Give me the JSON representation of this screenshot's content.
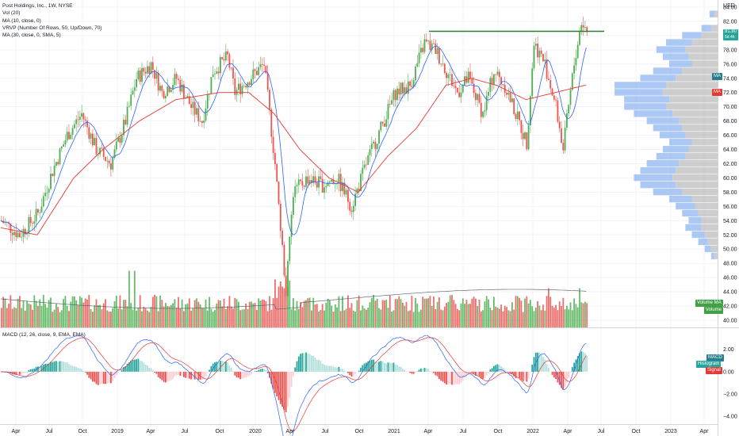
{
  "legend": {
    "title": "Post Holdings, Inc., 1W, NYSE",
    "lines": [
      "Vol (20)",
      "MA (10, close, 0)",
      "VRVP (Number Of Rows, 50, Up/Down, 70)",
      "MA (30, close, 0, SMA, 5)"
    ],
    "macd": "MACD (12, 26, close, 9, EMA, EMA)"
  },
  "currency": "USD",
  "last_price": "81.80",
  "last_price_sub": "5d 4h",
  "tags": {
    "ma10": "MA",
    "ma30": "MA",
    "vol_ma": "Volume MA",
    "volume": "Volume",
    "macd": "MACD",
    "histogram": "Histogram",
    "signal": "Signal"
  },
  "colors": {
    "up": "#26a69a",
    "up_bar": "#4caf50",
    "down": "#ef5350",
    "ma10": "#2962ff",
    "ma30": "#e53935",
    "vrvp_up": "#90b5f0",
    "vrvp_down": "#bdbdbd",
    "resistance": "#2e7d32"
  },
  "chart_data": {
    "type": "candlestick",
    "price_axis": {
      "ticks": [
        "84.00",
        "82.00",
        "80.00",
        "78.00",
        "76.00",
        "74.00",
        "72.00",
        "70.00",
        "68.00",
        "66.00",
        "64.00",
        "62.00",
        "60.00",
        "58.00",
        "56.00",
        "54.00",
        "52.00",
        "50.00",
        "48.00",
        "46.00",
        "44.00",
        "42.00",
        "40.00"
      ],
      "range": [
        39,
        85
      ]
    },
    "macd_axis": {
      "ticks": [
        "2.00",
        "0.00",
        "−2.00",
        "−4.00"
      ],
      "range": [
        -4.7,
        3.9
      ]
    },
    "time_axis": [
      "Apr",
      "Jul",
      "Oct",
      "2019",
      "Apr",
      "Jul",
      "Oct",
      "2020",
      "Apr",
      "Jul",
      "Oct",
      "2021",
      "Apr",
      "Jul",
      "Oct",
      "2022",
      "Apr",
      "Jul",
      "Oct",
      "2023",
      "Apr"
    ],
    "price_path": [
      [
        0,
        54
      ],
      [
        10,
        52
      ],
      [
        20,
        55
      ],
      [
        28,
        61
      ],
      [
        36,
        66
      ],
      [
        44,
        69
      ],
      [
        52,
        64
      ],
      [
        60,
        62
      ],
      [
        68,
        68
      ],
      [
        74,
        74
      ],
      [
        82,
        76
      ],
      [
        88,
        72
      ],
      [
        96,
        74
      ],
      [
        104,
        70
      ],
      [
        110,
        68
      ],
      [
        116,
        75
      ],
      [
        124,
        77
      ],
      [
        128,
        72
      ],
      [
        136,
        74
      ],
      [
        144,
        76
      ],
      [
        150,
        62
      ],
      [
        156,
        44
      ],
      [
        160,
        58
      ],
      [
        168,
        60
      ],
      [
        176,
        59
      ],
      [
        184,
        60
      ],
      [
        192,
        56
      ],
      [
        200,
        62
      ],
      [
        208,
        67
      ],
      [
        216,
        72
      ],
      [
        224,
        73
      ],
      [
        232,
        79
      ],
      [
        238,
        78
      ],
      [
        244,
        75
      ],
      [
        250,
        72
      ],
      [
        256,
        74
      ],
      [
        264,
        69
      ],
      [
        270,
        75
      ],
      [
        276,
        73
      ],
      [
        282,
        69
      ],
      [
        288,
        65
      ],
      [
        292,
        79
      ],
      [
        298,
        76
      ],
      [
        304,
        70
      ],
      [
        308,
        64
      ],
      [
        314,
        76
      ],
      [
        318,
        82
      ],
      [
        322,
        80
      ]
    ],
    "ma30_path": [
      [
        0,
        53
      ],
      [
        20,
        52
      ],
      [
        40,
        60
      ],
      [
        56,
        64
      ],
      [
        76,
        68
      ],
      [
        96,
        71
      ],
      [
        120,
        72
      ],
      [
        136,
        72
      ],
      [
        150,
        69
      ],
      [
        164,
        64
      ],
      [
        180,
        60
      ],
      [
        196,
        58
      ],
      [
        212,
        63
      ],
      [
        228,
        67
      ],
      [
        244,
        73
      ],
      [
        258,
        74
      ],
      [
        272,
        73
      ],
      [
        288,
        71
      ],
      [
        304,
        72
      ],
      [
        320,
        73
      ]
    ],
    "volume_profile": [
      {
        "price": 83,
        "up": 1.5,
        "down": 1
      },
      {
        "price": 81,
        "up": 3,
        "down": 2
      },
      {
        "price": 80,
        "up": 6,
        "down": 5
      },
      {
        "price": 79,
        "up": 8,
        "down": 8
      },
      {
        "price": 78,
        "up": 9,
        "down": 10
      },
      {
        "price": 77,
        "up": 8,
        "down": 9
      },
      {
        "price": 76,
        "up": 7,
        "down": 8
      },
      {
        "price": 75,
        "up": 9,
        "down": 11
      },
      {
        "price": 74,
        "up": 11,
        "down": 13
      },
      {
        "price": 73,
        "up": 16,
        "down": 16
      },
      {
        "price": 72,
        "up": 15,
        "down": 17
      },
      {
        "price": 71,
        "up": 14,
        "down": 15
      },
      {
        "price": 70,
        "up": 13,
        "down": 16
      },
      {
        "price": 69,
        "up": 12,
        "down": 14
      },
      {
        "price": 68,
        "up": 10,
        "down": 12
      },
      {
        "price": 67,
        "up": 9,
        "down": 11
      },
      {
        "price": 66,
        "up": 8,
        "down": 10
      },
      {
        "price": 65,
        "up": 7,
        "down": 8
      },
      {
        "price": 64,
        "up": 8,
        "down": 9
      },
      {
        "price": 63,
        "up": 9,
        "down": 10
      },
      {
        "price": 62,
        "up": 10,
        "down": 12
      },
      {
        "price": 61,
        "up": 11,
        "down": 13
      },
      {
        "price": 60,
        "up": 12,
        "down": 14
      },
      {
        "price": 59,
        "up": 11,
        "down": 13
      },
      {
        "price": 58,
        "up": 9,
        "down": 11
      },
      {
        "price": 57,
        "up": 7,
        "down": 8
      },
      {
        "price": 56,
        "up": 6,
        "down": 7
      },
      {
        "price": 55,
        "up": 5,
        "down": 6
      },
      {
        "price": 54,
        "up": 4,
        "down": 5
      },
      {
        "price": 53,
        "up": 5,
        "down": 5
      },
      {
        "price": 52,
        "up": 4,
        "down": 4
      },
      {
        "price": 51,
        "up": 3,
        "down": 3
      },
      {
        "price": 50,
        "up": 2,
        "down": 2
      },
      {
        "price": 49,
        "up": 1,
        "down": 1
      }
    ],
    "resistance_level": 80.6
  }
}
